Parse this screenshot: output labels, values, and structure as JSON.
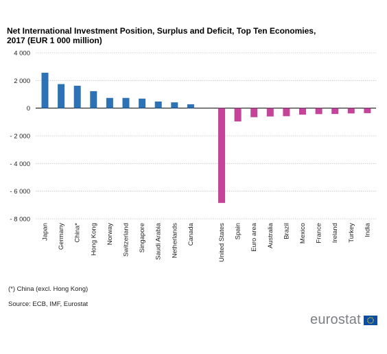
{
  "title_line1": "Net International Investment Position, Surplus and Deficit, Top Ten Economies,",
  "title_line2": "2017 (EUR 1 000 million)",
  "footnote": "(*) China (excl. Hong Kong)",
  "source": "Source: ECB, IMF, Eurostat",
  "logo_text": "eurostat",
  "colors": {
    "surplus": "#2c72b4",
    "deficit": "#c4449a",
    "grid": "#bfbfbf"
  },
  "chart_data": {
    "type": "bar",
    "ylim": [
      -8000,
      4000
    ],
    "yticks": [
      4000,
      2000,
      0,
      -2000,
      -4000,
      -6000,
      -8000
    ],
    "ytick_labels": [
      "4 000",
      "2 000",
      "0",
      "- 2 000",
      "- 4 000",
      "- 6 000",
      "- 8 000"
    ],
    "grid": true,
    "groups": [
      {
        "color": "#2c72b4",
        "categories": [
          "Japan",
          "Germany",
          "China*",
          "Hong Kong",
          "Norway",
          "Switzerland",
          "Singapore",
          "Saudi Arabia",
          "Netherlands",
          "Canada"
        ],
        "values": [
          2560,
          1740,
          1620,
          1230,
          740,
          740,
          690,
          480,
          420,
          280
        ]
      },
      {
        "color": "#c4449a",
        "categories": [
          "United States",
          "Spain",
          "Euro area",
          "Australia",
          "Brazil",
          "Mexico",
          "France",
          "Ireland",
          "Turkey",
          "India"
        ],
        "values": [
          -6850,
          -960,
          -650,
          -600,
          -580,
          -470,
          -430,
          -420,
          -380,
          -360
        ]
      }
    ]
  }
}
